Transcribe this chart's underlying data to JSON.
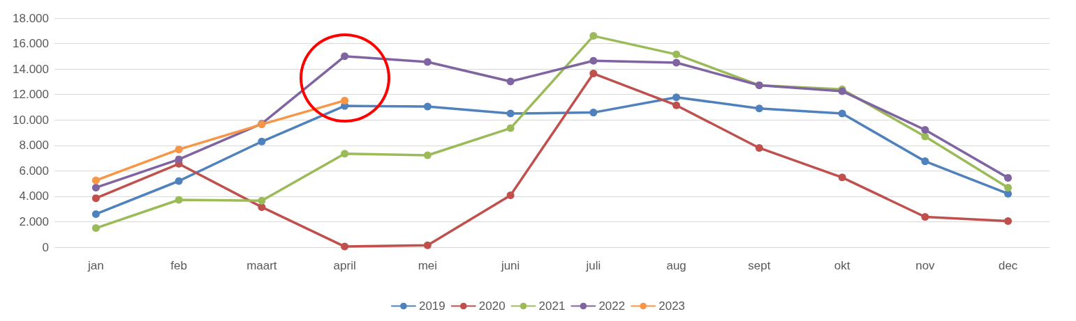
{
  "chart_data": {
    "type": "line",
    "categories": [
      "jan",
      "feb",
      "maart",
      "april",
      "mei",
      "juni",
      "juli",
      "aug",
      "sept",
      "okt",
      "nov",
      "dec"
    ],
    "series": [
      {
        "name": "2019",
        "color": "#4f81bd",
        "values": [
          2600,
          5200,
          8300,
          11100,
          11050,
          10500,
          10580,
          11780,
          10900,
          10500,
          6750,
          4200
        ]
      },
      {
        "name": "2020",
        "color": "#c0504d",
        "values": [
          3850,
          6550,
          3150,
          50,
          150,
          4080,
          13650,
          11150,
          7800,
          5480,
          2380,
          2050
        ]
      },
      {
        "name": "2021",
        "color": "#9bbb59",
        "values": [
          1500,
          3720,
          3650,
          7350,
          7220,
          9350,
          16600,
          15150,
          12720,
          12400,
          8700,
          4680
        ]
      },
      {
        "name": "2022",
        "color": "#8064a2",
        "values": [
          4680,
          6900,
          9700,
          15000,
          14550,
          13020,
          14650,
          14500,
          12720,
          12260,
          9220,
          5450
        ]
      },
      {
        "name": "2023",
        "color": "#f79646",
        "values": [
          5250,
          7680,
          9650,
          11520,
          null,
          null,
          null,
          null,
          null,
          null,
          null,
          null
        ]
      }
    ],
    "ylim": [
      0,
      18000
    ],
    "yticks": [
      {
        "value": 0,
        "label": "0"
      },
      {
        "value": 2000,
        "label": "2.000"
      },
      {
        "value": 4000,
        "label": "4.000"
      },
      {
        "value": 6000,
        "label": "6.000"
      },
      {
        "value": 8000,
        "label": "8.000"
      },
      {
        "value": 10000,
        "label": "10.000"
      },
      {
        "value": 12000,
        "label": "12.000"
      },
      {
        "value": 14000,
        "label": "14.000"
      },
      {
        "value": 16000,
        "label": "16.000"
      },
      {
        "value": 18000,
        "label": "18.000"
      }
    ],
    "grid": "y",
    "legend": "bottom",
    "marker": "circle",
    "line_style": "solid"
  }
}
